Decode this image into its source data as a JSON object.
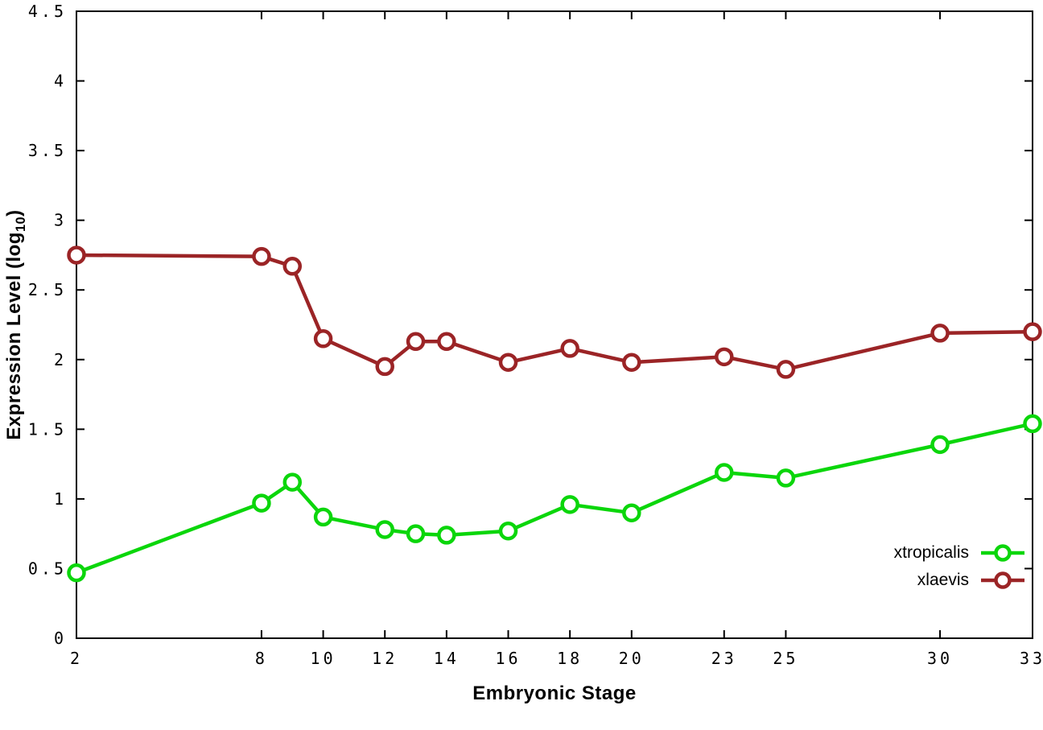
{
  "chart_data": {
    "type": "line",
    "title": "",
    "xlabel": "Embryonic Stage",
    "ylabel": "Expression Level (log10)",
    "ylabel_parts": {
      "prefix": "Expression Level (log",
      "sub": "10",
      "suffix": ")"
    },
    "xlim": [
      2,
      33
    ],
    "ylim": [
      0,
      4.5
    ],
    "xticks": [
      2,
      8,
      10,
      12,
      14,
      16,
      18,
      20,
      23,
      25,
      30,
      33
    ],
    "yticks": [
      0,
      0.5,
      1,
      1.5,
      2,
      2.5,
      3,
      3.5,
      4,
      4.5
    ],
    "grid": false,
    "legend_position": "inside bottom-right",
    "x": [
      2,
      8,
      9,
      10,
      12,
      13,
      14,
      16,
      18,
      20,
      23,
      25,
      30,
      33
    ],
    "series": [
      {
        "name": "xtropicalis",
        "color": "#0bd60b",
        "values": [
          0.47,
          0.97,
          1.12,
          0.87,
          0.78,
          0.75,
          0.74,
          0.77,
          0.96,
          0.9,
          1.19,
          1.15,
          1.39,
          1.54
        ]
      },
      {
        "name": "xlaevis",
        "color": "#9b2426",
        "values": [
          2.75,
          2.74,
          2.67,
          2.15,
          1.95,
          2.13,
          2.13,
          1.98,
          2.08,
          1.98,
          2.02,
          1.93,
          2.19,
          2.2
        ]
      }
    ]
  }
}
